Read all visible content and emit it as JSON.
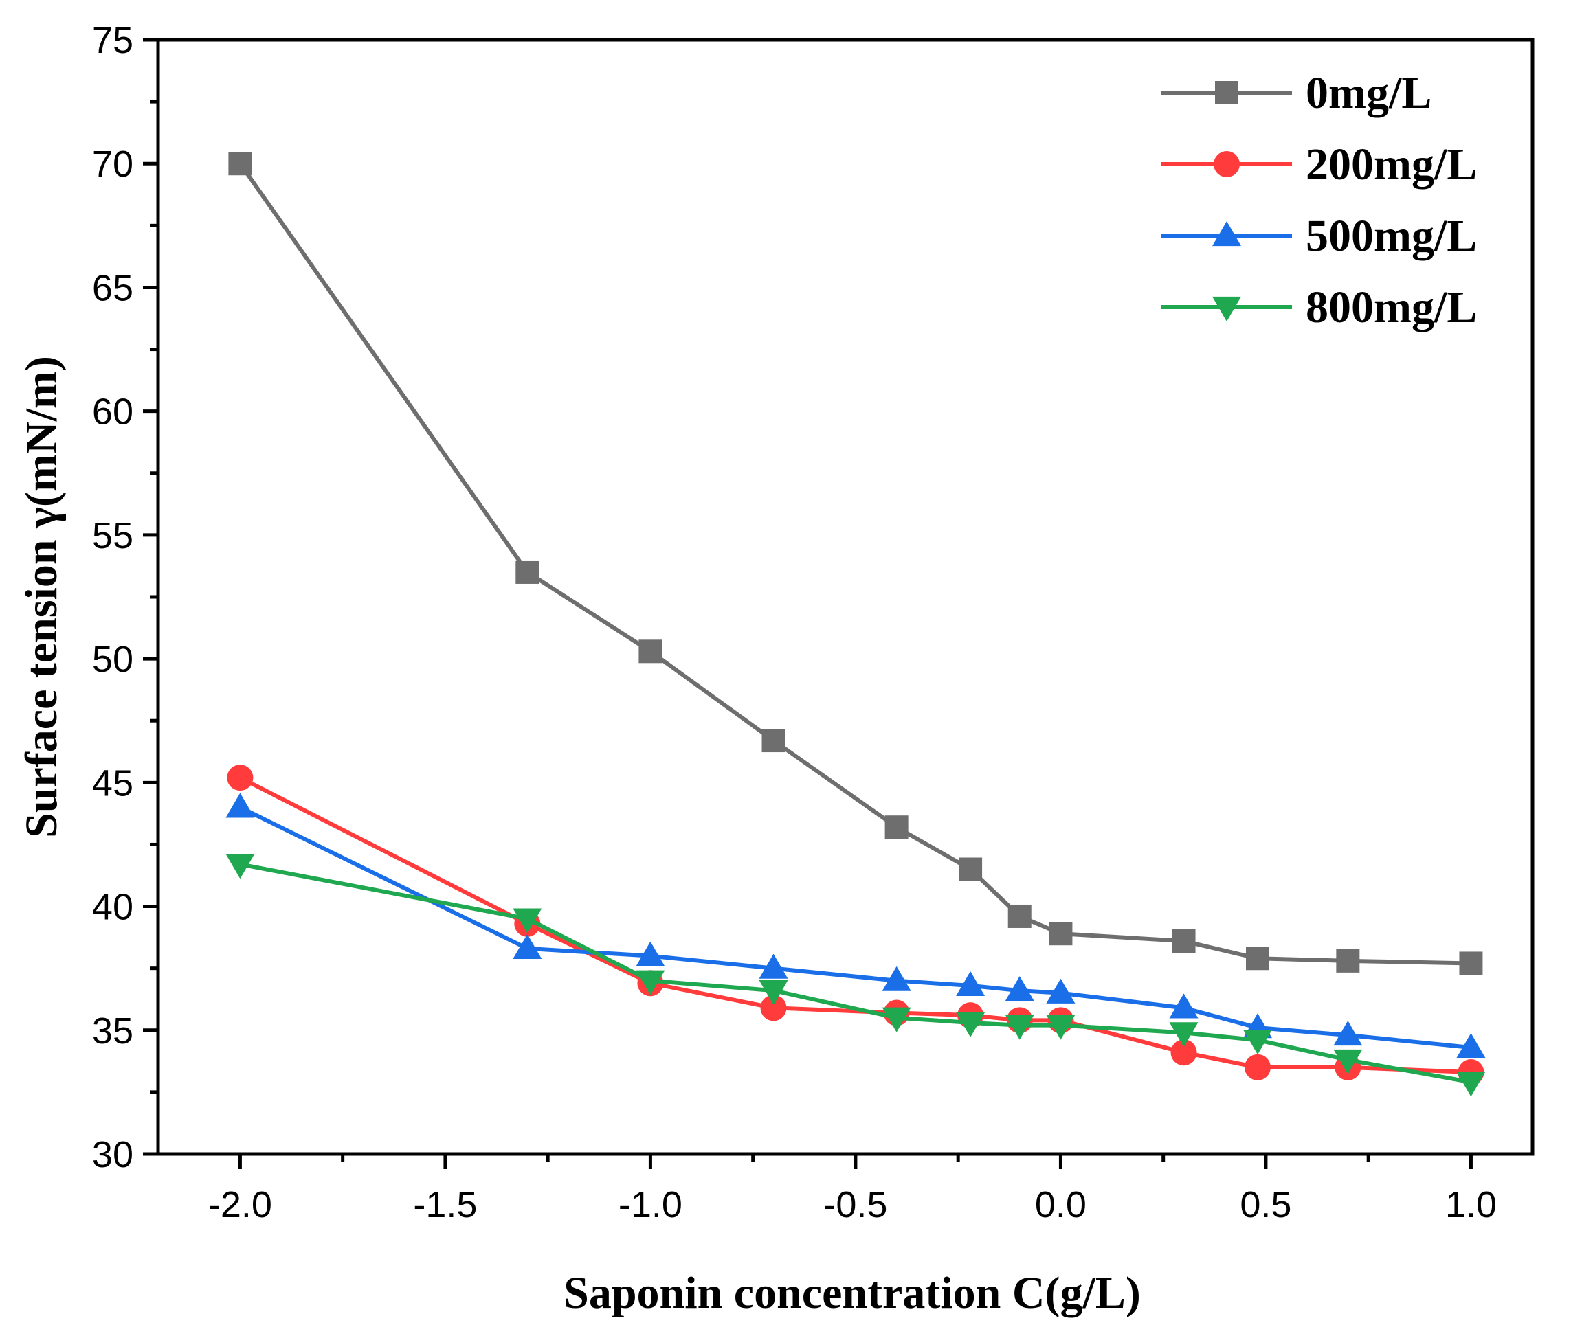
{
  "chart_data": {
    "type": "line",
    "xlabel": "Saponin concentration C(g/L)",
    "ylabel": "Surface tension γ(mN/m)",
    "xlim": [
      -2.2,
      1.15
    ],
    "ylim": [
      30,
      75
    ],
    "xticks": [
      -2.0,
      -1.5,
      -1.0,
      -0.5,
      0.0,
      0.5,
      1.0
    ],
    "xtick_labels": [
      "-2.0",
      "-1.5",
      "-1.0",
      "-0.5",
      "0.0",
      "0.5",
      "1.0"
    ],
    "yticks": [
      30,
      35,
      40,
      45,
      50,
      55,
      60,
      65,
      70,
      75
    ],
    "ytick_labels": [
      "30",
      "35",
      "40",
      "45",
      "50",
      "55",
      "60",
      "65",
      "70",
      "75"
    ],
    "grid": false,
    "legend_position": "top-right",
    "x": [
      -2.0,
      -1.3,
      -1.0,
      -0.7,
      -0.4,
      -0.22,
      -0.1,
      0.0,
      0.3,
      0.48,
      0.7,
      1.0
    ],
    "series": [
      {
        "name": "0mg/L",
        "color": "#6e6e6e",
        "marker": "square",
        "values": [
          70.0,
          53.5,
          50.3,
          46.7,
          43.2,
          41.5,
          39.6,
          38.9,
          38.6,
          37.9,
          37.8,
          37.7
        ]
      },
      {
        "name": "200mg/L",
        "color": "#ff3b3b",
        "marker": "circle",
        "values": [
          45.2,
          39.3,
          36.9,
          35.9,
          35.7,
          35.6,
          35.4,
          35.4,
          34.1,
          33.5,
          33.5,
          33.3
        ]
      },
      {
        "name": "500mg/L",
        "color": "#1a6fe8",
        "marker": "triangle-up",
        "values": [
          44.0,
          38.3,
          38.0,
          37.5,
          37.0,
          36.8,
          36.6,
          36.5,
          35.9,
          35.1,
          34.8,
          34.3
        ]
      },
      {
        "name": "800mg/L",
        "color": "#1fa84f",
        "marker": "triangle-down",
        "values": [
          41.7,
          39.5,
          37.0,
          36.6,
          35.5,
          35.3,
          35.2,
          35.2,
          34.9,
          34.6,
          33.8,
          32.9
        ]
      }
    ]
  }
}
